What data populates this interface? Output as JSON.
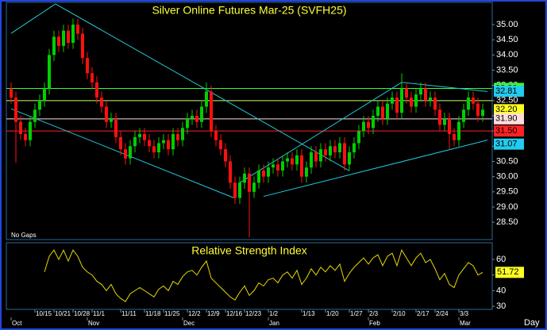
{
  "chart_data": {
    "type": "candlestick",
    "title": "Silver Online Futures Mar-25 (SVFH25)",
    "annotation": "No Gaps",
    "x_unit_label": "Day",
    "up_color": "#00d000",
    "down_color": "#ff1010",
    "open": [
      32.9,
      32.6,
      31.8,
      31.4,
      31.2,
      31.8,
      32.2,
      32.5,
      32.9,
      34.0,
      34.6,
      34.3,
      34.8,
      34.4,
      35.0,
      34.7,
      33.9,
      33.4,
      33.1,
      32.6,
      32.3,
      31.8,
      31.9,
      31.3,
      30.9,
      30.6,
      31.0,
      31.3,
      31.4,
      31.2,
      31.0,
      30.8,
      31.1,
      31.2,
      30.9,
      31.4,
      31.2,
      31.6,
      31.9,
      32.0,
      31.8,
      32.3,
      32.8,
      31.5,
      31.2,
      30.9,
      30.5,
      29.8,
      29.3,
      29.8,
      30.1,
      29.5,
      29.8,
      30.2,
      30.0,
      30.3,
      30.4,
      30.2,
      30.5,
      30.6,
      30.4,
      30.7,
      30.0,
      30.3,
      30.8,
      30.5,
      30.9,
      30.7,
      31.0,
      30.8,
      31.1,
      30.4,
      30.8,
      31.1,
      31.5,
      31.8,
      31.6,
      32.0,
      32.3,
      31.9,
      32.4,
      32.6,
      32.1,
      32.9,
      32.6,
      32.3,
      32.7,
      32.9,
      32.5,
      32.6,
      32.2,
      31.7,
      31.9,
      31.4,
      31.2,
      31.8,
      32.2,
      32.6,
      32.4,
      32.0
    ],
    "high": [
      33.1,
      32.8,
      32.0,
      31.6,
      32.0,
      32.4,
      32.7,
      33.1,
      34.2,
      34.8,
      34.8,
      35.0,
      35.0,
      35.2,
      35.2,
      34.9,
      34.1,
      33.6,
      33.3,
      32.8,
      32.5,
      32.1,
      32.1,
      31.5,
      31.1,
      31.2,
      31.5,
      31.6,
      31.6,
      31.4,
      31.2,
      31.3,
      31.4,
      31.4,
      31.6,
      31.6,
      31.8,
      32.1,
      32.2,
      32.2,
      32.5,
      33.1,
      33.0,
      31.7,
      31.4,
      31.1,
      30.7,
      30.0,
      30.0,
      30.3,
      30.3,
      30.0,
      30.4,
      30.4,
      30.5,
      30.6,
      30.6,
      30.7,
      30.8,
      30.8,
      30.9,
      30.9,
      30.5,
      31.0,
      31.0,
      31.1,
      31.1,
      31.2,
      31.2,
      31.3,
      31.3,
      31.0,
      31.3,
      31.7,
      32.0,
      32.0,
      32.2,
      32.5,
      32.5,
      32.6,
      32.8,
      32.8,
      33.4,
      33.1,
      32.8,
      32.9,
      33.1,
      33.1,
      32.8,
      32.8,
      32.4,
      32.1,
      32.1,
      31.6,
      32.0,
      32.4,
      32.8,
      32.8,
      32.6,
      32.4
    ],
    "low": [
      32.4,
      30.45,
      31.2,
      31.0,
      31.0,
      31.6,
      32.0,
      32.3,
      32.7,
      33.8,
      34.1,
      34.1,
      34.2,
      34.2,
      34.5,
      33.7,
      33.2,
      32.9,
      32.4,
      32.1,
      31.6,
      31.6,
      31.1,
      30.7,
      30.4,
      30.4,
      30.8,
      31.1,
      31.0,
      30.8,
      30.6,
      30.6,
      30.9,
      30.7,
      30.7,
      31.0,
      31.0,
      31.4,
      31.7,
      31.6,
      31.6,
      32.1,
      31.3,
      31.0,
      30.7,
      30.3,
      29.6,
      29.1,
      29.1,
      29.6,
      28.0,
      29.3,
      29.6,
      29.8,
      29.8,
      30.1,
      30.0,
      30.0,
      30.3,
      30.2,
      30.2,
      29.8,
      29.8,
      30.1,
      30.3,
      30.3,
      30.5,
      30.5,
      30.6,
      30.6,
      30.2,
      30.2,
      30.6,
      30.9,
      31.3,
      31.4,
      31.4,
      31.8,
      31.7,
      31.7,
      32.2,
      31.9,
      31.9,
      32.4,
      32.1,
      32.1,
      32.5,
      32.3,
      32.3,
      32.0,
      31.5,
      31.5,
      30.9,
      31.0,
      31.0,
      31.6,
      32.0,
      32.2,
      31.8,
      31.8
    ],
    "close": [
      32.6,
      31.8,
      31.4,
      31.2,
      31.8,
      32.2,
      32.5,
      32.9,
      34.0,
      34.6,
      34.3,
      34.8,
      34.4,
      35.0,
      34.7,
      33.9,
      33.4,
      33.1,
      32.6,
      32.3,
      31.8,
      31.9,
      31.3,
      30.9,
      30.6,
      31.0,
      31.3,
      31.4,
      31.2,
      31.0,
      30.8,
      31.1,
      31.2,
      30.9,
      31.4,
      31.2,
      31.6,
      31.9,
      32.0,
      31.8,
      32.3,
      32.8,
      31.5,
      31.2,
      30.9,
      30.5,
      29.8,
      29.3,
      29.8,
      30.1,
      29.5,
      29.8,
      30.2,
      30.0,
      30.3,
      30.4,
      30.2,
      30.5,
      30.6,
      30.4,
      30.7,
      30.0,
      30.3,
      30.8,
      30.5,
      30.9,
      30.7,
      31.0,
      30.8,
      31.1,
      30.4,
      30.8,
      31.1,
      31.5,
      31.8,
      31.6,
      32.0,
      32.3,
      31.9,
      32.4,
      32.6,
      32.1,
      32.9,
      32.6,
      32.3,
      32.7,
      32.9,
      32.5,
      32.6,
      32.2,
      31.7,
      31.9,
      31.4,
      31.2,
      31.8,
      32.2,
      32.6,
      32.4,
      32.0,
      32.2
    ],
    "ylim": [
      27.93,
      35.73
    ],
    "yticks": [
      {
        "value": 28.5,
        "label": "28.50"
      },
      {
        "value": 29,
        "label": "29.00"
      },
      {
        "value": 29.5,
        "label": "29.50"
      },
      {
        "value": 30,
        "label": "30.00"
      },
      {
        "value": 30.5,
        "label": "30.50"
      },
      {
        "value": 31,
        "label": "31.00"
      },
      {
        "value": 31.5,
        "label": "31.50"
      },
      {
        "value": 32,
        "label": "32.00"
      },
      {
        "value": 32.5,
        "label": "32.50"
      },
      {
        "value": 33,
        "label": "33.00"
      },
      {
        "value": 33.5,
        "label": "33.50"
      },
      {
        "value": 34,
        "label": "34.00"
      },
      {
        "value": 34.5,
        "label": "34.50"
      },
      {
        "value": 35,
        "label": "35.00"
      }
    ],
    "levels": [
      {
        "value": 32.9,
        "label": "32.90",
        "color": "#33ff33",
        "line": true
      },
      {
        "value": 32.81,
        "label": "32.81",
        "color": "#22ccee",
        "line": false
      },
      {
        "value": 32.5,
        "color": "#ccff66",
        "line": true
      },
      {
        "value": 32.2,
        "label": "32.20",
        "color": "#ffff22",
        "line": false
      },
      {
        "value": 31.9,
        "label": "31.90",
        "color": "#ffdddd",
        "line": true
      },
      {
        "value": 31.5,
        "label": "31.50",
        "color": "#ff2222",
        "line": true
      },
      {
        "value": 31.07,
        "label": "31.07",
        "color": "#22ccee",
        "line": false
      }
    ],
    "trendline_color": "#22c8d8",
    "trendlines": [
      [
        [
          0,
          34.71
        ],
        [
          9.3,
          35.68
        ]
      ],
      [
        [
          9.3,
          35.68
        ],
        [
          71,
          30.19
        ]
      ],
      [
        [
          0,
          32.23
        ],
        [
          46.8,
          29.3
        ]
      ],
      [
        [
          48,
          29.8
        ],
        [
          82,
          33.1
        ]
      ],
      [
        [
          82,
          33.1
        ],
        [
          100,
          32.8
        ]
      ],
      [
        [
          53,
          29.35
        ],
        [
          100,
          31.2
        ]
      ]
    ],
    "xticks": [
      {
        "value": 5,
        "label": "10/15"
      },
      {
        "value": 9,
        "label": "10/21"
      },
      {
        "value": 13,
        "label": "10/28"
      },
      {
        "value": 17,
        "label": "11/1"
      },
      {
        "value": 23,
        "label": "11/11"
      },
      {
        "value": 28,
        "label": "11/18"
      },
      {
        "value": 32,
        "label": "11/25"
      },
      {
        "value": 37,
        "label": "12/2"
      },
      {
        "value": 41,
        "label": "12/9"
      },
      {
        "value": 45,
        "label": "12/16"
      },
      {
        "value": 49,
        "label": "12/23"
      },
      {
        "value": 54,
        "label": "1/2"
      },
      {
        "value": 61,
        "label": "1/13"
      },
      {
        "value": 66,
        "label": "1/20"
      },
      {
        "value": 71,
        "label": "1/27"
      },
      {
        "value": 75,
        "label": "2/3"
      },
      {
        "value": 80,
        "label": "2/10"
      },
      {
        "value": 85,
        "label": "2/17"
      },
      {
        "value": 89,
        "label": "2/24"
      },
      {
        "value": 94,
        "label": "3/3"
      }
    ],
    "month_ticks": [
      {
        "value": 0,
        "label": "Oct"
      },
      {
        "value": 16,
        "label": "Nov"
      },
      {
        "value": 36,
        "label": "Dec"
      },
      {
        "value": 54,
        "label": "Jan"
      },
      {
        "value": 75,
        "label": "Feb"
      },
      {
        "value": 94,
        "label": "Mar"
      }
    ],
    "indicator": {
      "type": "line",
      "title": "Relative Strength Index",
      "color": "#e8d800",
      "ylim": [
        28,
        70.7
      ],
      "yticks": [
        30,
        40,
        50,
        60
      ],
      "values": [
        null,
        null,
        null,
        null,
        null,
        null,
        null,
        52,
        62,
        66,
        60,
        66,
        59,
        66,
        62,
        55,
        52,
        50,
        46,
        44,
        40,
        44,
        38,
        35,
        33,
        38,
        40,
        42,
        40,
        38,
        36,
        41,
        43,
        40,
        46,
        44,
        49,
        52,
        53,
        50,
        55,
        59,
        48,
        45,
        42,
        39,
        36,
        34,
        39,
        43,
        37,
        40,
        45,
        43,
        47,
        48,
        45,
        50,
        52,
        48,
        53,
        44,
        48,
        54,
        50,
        55,
        52,
        56,
        53,
        57,
        46,
        51,
        55,
        58,
        61,
        57,
        61,
        63,
        56,
        62,
        64,
        56,
        66,
        61,
        56,
        61,
        64,
        58,
        60,
        54,
        47,
        51,
        44,
        42,
        50,
        54,
        58,
        56,
        50,
        51.72
      ]
    }
  }
}
